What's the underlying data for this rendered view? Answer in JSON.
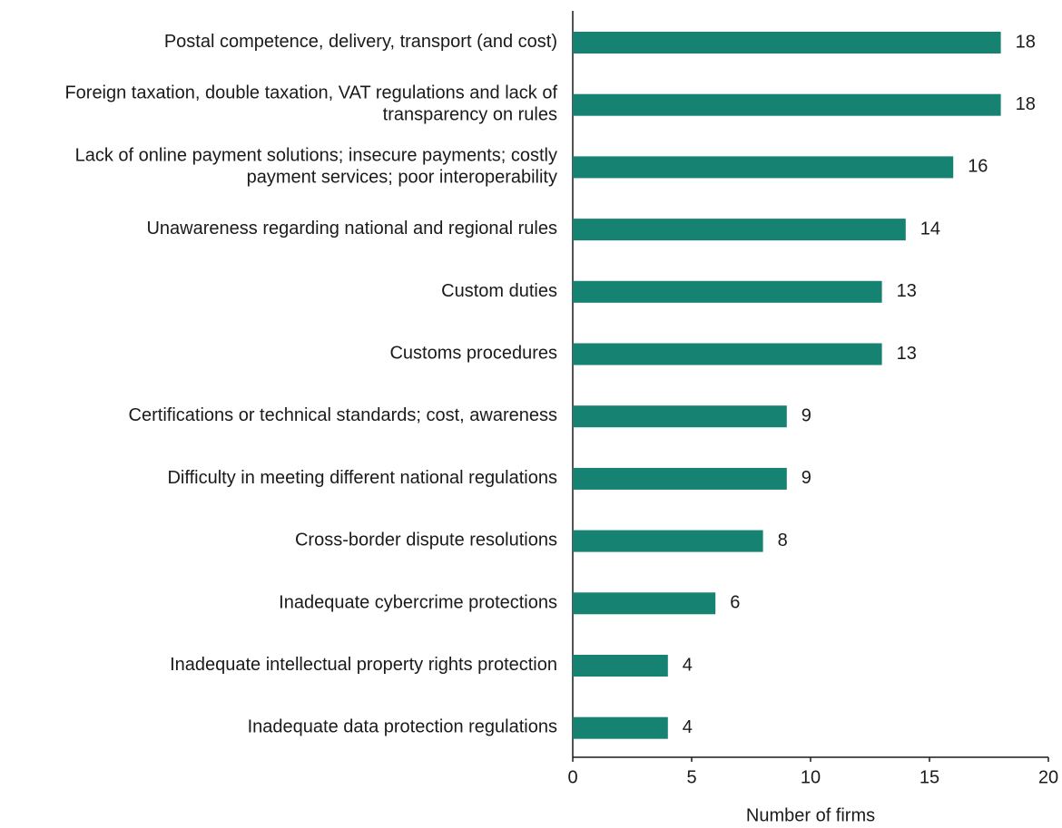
{
  "chart_data": {
    "type": "barh",
    "categories": [
      "Postal competence, delivery, transport (and cost)",
      "Foreign taxation, double taxation, VAT regulations and lack of transparency on rules",
      "Lack of online payment solutions; insecure payments; costly payment services; poor interoperability",
      "Unawareness regarding national and regional rules",
      "Custom duties",
      "Customs procedures",
      "Certifications or technical standards; cost, awareness",
      "Difficulty in meeting different national regulations",
      "Cross-border dispute resolutions",
      "Inadequate cybercrime protections",
      "Inadequate intellectual property rights protection",
      "Inadequate data protection regulations"
    ],
    "values": [
      18,
      18,
      16,
      14,
      13,
      13,
      9,
      9,
      8,
      6,
      4,
      4
    ],
    "color": "#168272",
    "xlabel": "Number of firms",
    "xlim": [
      0,
      20
    ],
    "xticks": [
      0,
      5,
      10,
      15,
      20
    ],
    "grid": false
  }
}
